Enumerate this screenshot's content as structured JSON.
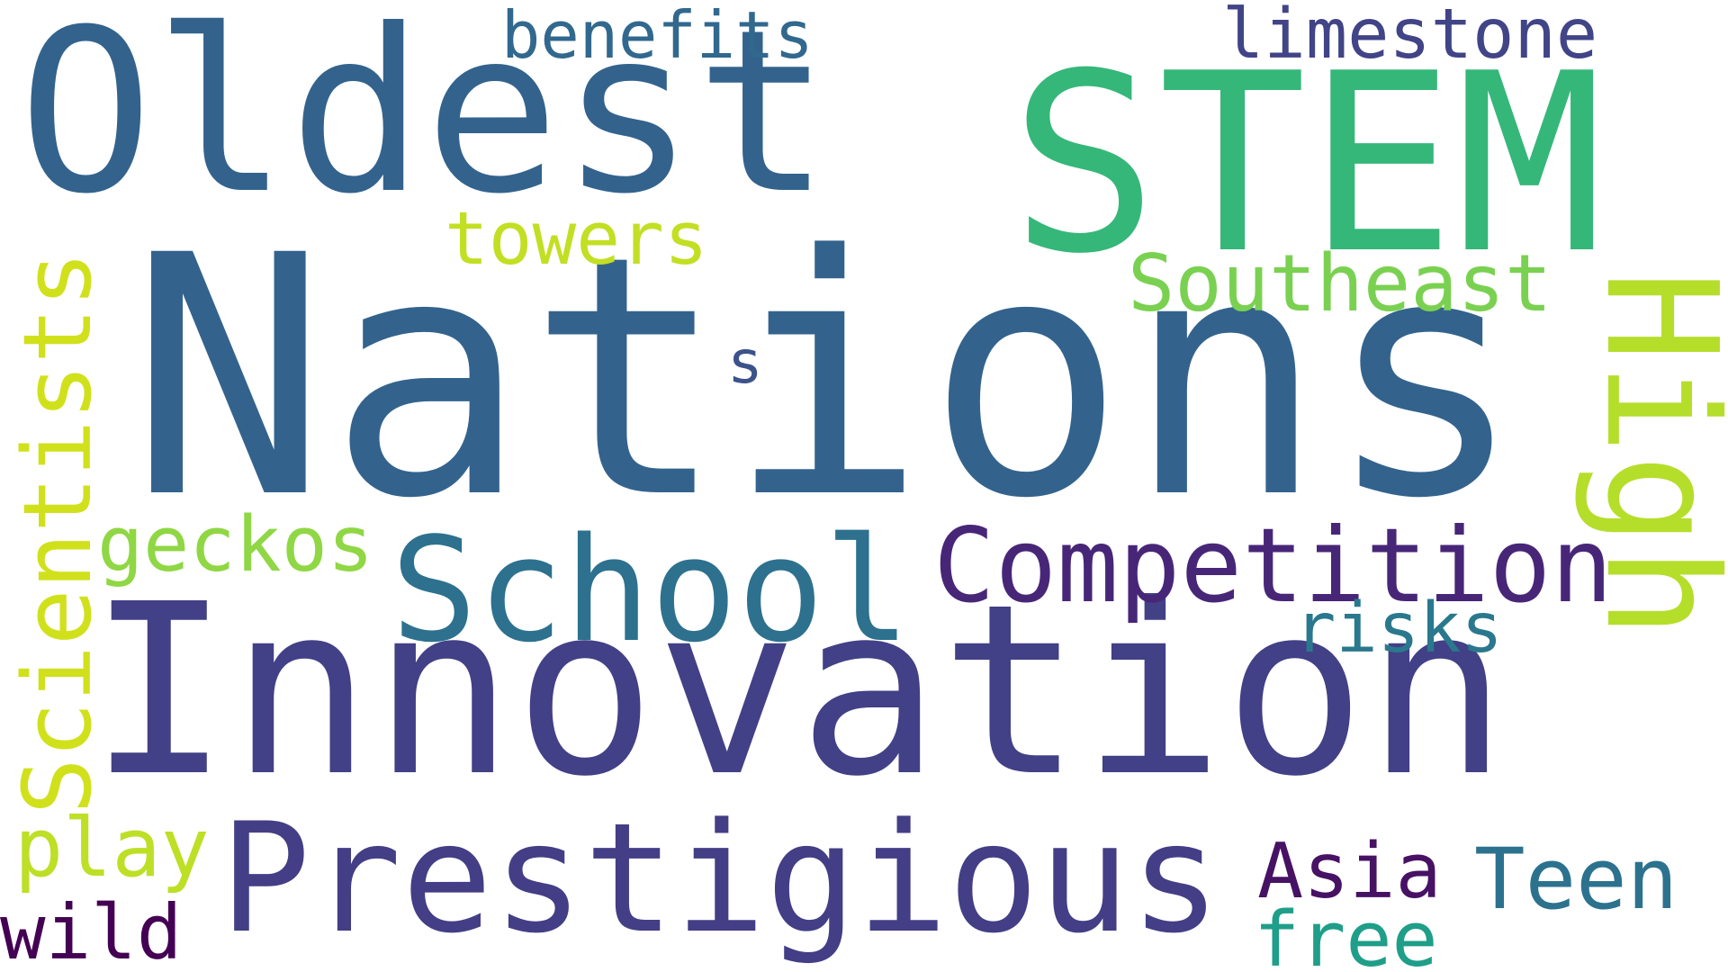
{
  "wordcloud": {
    "words": [
      {
        "text": "Nations",
        "color": "#33638d"
      },
      {
        "text": "Innovation",
        "color": "#424086"
      },
      {
        "text": "Oldest",
        "color": "#33638d"
      },
      {
        "text": "STEM",
        "color": "#35b779"
      },
      {
        "text": "Prestigious",
        "color": "#433e85"
      },
      {
        "text": "School",
        "color": "#2d718e"
      },
      {
        "text": "Competition",
        "color": "#482677"
      },
      {
        "text": "High",
        "color": "#b5de2b"
      },
      {
        "text": "Scientists",
        "color": "#d0e11c"
      },
      {
        "text": "Southeast",
        "color": "#7ad151"
      },
      {
        "text": "towers",
        "color": "#c2df23"
      },
      {
        "text": "geckos",
        "color": "#8fd744"
      },
      {
        "text": "benefits",
        "color": "#31688e"
      },
      {
        "text": "limestone",
        "color": "#414487"
      },
      {
        "text": "risks",
        "color": "#2a788e"
      },
      {
        "text": "Asia",
        "color": "#471164"
      },
      {
        "text": "Teen",
        "color": "#2c728e"
      },
      {
        "text": "free",
        "color": "#1f9e89"
      },
      {
        "text": "play",
        "color": "#bddf26"
      },
      {
        "text": "wild",
        "color": "#440154"
      },
      {
        "text": "s",
        "color": "#3b528b"
      }
    ]
  }
}
